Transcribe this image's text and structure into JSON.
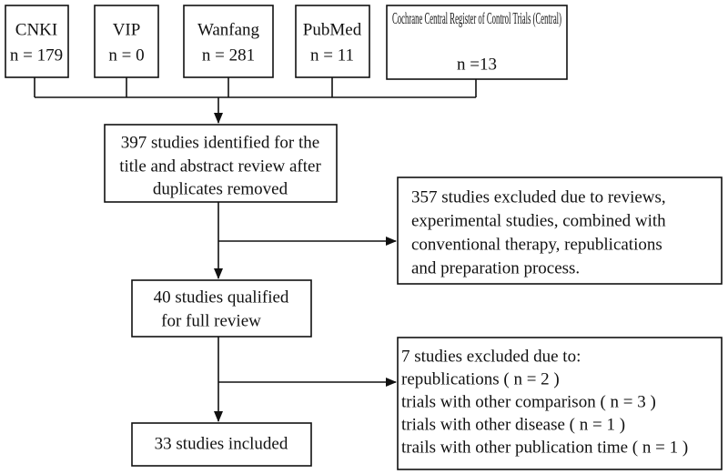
{
  "sources": [
    {
      "name": "CNKI",
      "count": "n = 179"
    },
    {
      "name": "VIP",
      "count": "n = 0"
    },
    {
      "name": "Wanfang",
      "count": "n = 281"
    },
    {
      "name": "PubMed",
      "count": "n = 11"
    },
    {
      "name": "Cochrane Central Register of Control Trials (Central)",
      "count": "n =13"
    }
  ],
  "screening": {
    "lines": [
      "397 studies identified for the",
      "title and abstract review after",
      "duplicates removed"
    ]
  },
  "excluded_screening": {
    "lines": [
      "357 studies excluded due to reviews,",
      "experimental studies, combined with",
      "conventional therapy, republications",
      "and preparation process."
    ]
  },
  "full_review": {
    "lines": [
      "40 studies qualified",
      "for full review"
    ]
  },
  "excluded_full": {
    "lines": [
      "7 studies excluded due to:",
      "republications ( n = 2 )",
      "trials with other comparison ( n = 3 )",
      "trials with other disease ( n = 1 )",
      "trails with other publication time ( n = 1 )"
    ]
  },
  "included": {
    "label": "33 studies included"
  }
}
